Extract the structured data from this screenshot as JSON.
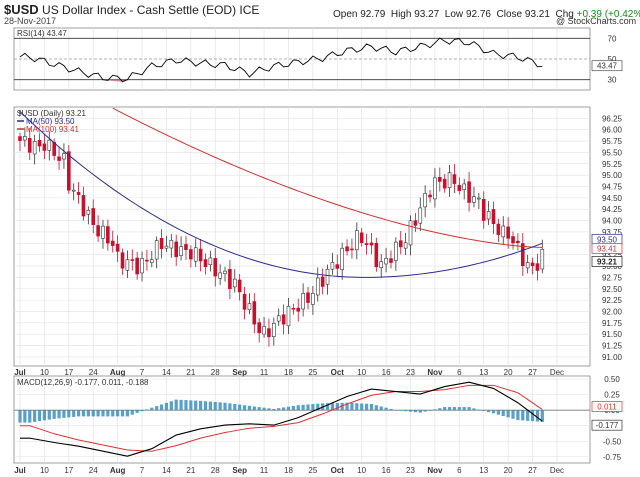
{
  "header": {
    "symbol": "$USD",
    "name": "US Dollar Index - Cash Settle (EOD) ICE",
    "date": "28-Nov-2017",
    "open_label": "Open",
    "open": "92.79",
    "high_label": "High",
    "high": "93.27",
    "low_label": "Low",
    "low": "92.76",
    "close_label": "Close",
    "close": "93.21",
    "chg_label": "Chg",
    "chg": "+0.39 (+0.42%)",
    "brand": "@ StockCharts.com"
  },
  "colors": {
    "up_candle": "#ffffff",
    "down_candle": "#c8102e",
    "ma50": "#2b2b8f",
    "ma100": "#d03030",
    "rsi_line": "#000000",
    "rsi_fill_low": "#b06070",
    "macd_line": "#000000",
    "signal_line": "#e03030",
    "histogram": "#3c8fc0",
    "grid": "#e2e2e2"
  },
  "chart_data": [
    {
      "type": "line",
      "title": "RSI(14) 43.47",
      "indicator": "RSI(14)",
      "last_value": 43.47,
      "ylim": [
        20,
        80
      ],
      "ref_lines": [
        30,
        50,
        70
      ],
      "y_ticks": [
        "70",
        "50",
        "30"
      ],
      "x": [
        "Jul 3",
        "Jul 10",
        "Jul 17",
        "Jul 24",
        "Jul 31",
        "Aug 7",
        "Aug 14",
        "Aug 21",
        "Aug 28",
        "Sep 4",
        "Sep 11",
        "Sep 18",
        "Sep 25",
        "Oct 2",
        "Oct 9",
        "Oct 16",
        "Oct 23",
        "Oct 30",
        "Nov 6",
        "Nov 13",
        "Nov 20",
        "Nov 27"
      ],
      "values": [
        52,
        45,
        38,
        32,
        31,
        43,
        49,
        46,
        44,
        36,
        43,
        47,
        51,
        58,
        62,
        57,
        62,
        68,
        66,
        55,
        52,
        44
      ]
    },
    {
      "type": "candlestick",
      "title": "$USD (Daily) 93.21",
      "legend": [
        {
          "name": "MA(50) 93.50",
          "color": "#2b2b8f"
        },
        {
          "name": "MA(100) 93.41",
          "color": "#d03030"
        }
      ],
      "ylim": [
        90.8,
        96.5
      ],
      "y_ticks": [
        "96.25",
        "96.00",
        "95.75",
        "95.50",
        "95.25",
        "95.00",
        "94.75",
        "94.50",
        "94.25",
        "94.00",
        "93.75",
        "93.50",
        "93.25",
        "93.00",
        "92.75",
        "92.50",
        "92.25",
        "92.00",
        "91.75",
        "91.50",
        "91.25",
        "91.00"
      ],
      "price_labels": [
        {
          "label": "93.50",
          "value": 93.5,
          "color": "#2b2b8f"
        },
        {
          "label": "93.41",
          "value": 93.41,
          "color": "#d03030"
        },
        {
          "label": "93.21",
          "value": 93.21,
          "color": "#222222"
        }
      ],
      "x_ticks": [
        "Jul",
        "10",
        "17",
        "24",
        "Aug",
        "7",
        "14",
        "21",
        "28",
        "Sep",
        "11",
        "18",
        "25",
        "Oct",
        "10",
        "16",
        "23",
        "Nov",
        "6",
        "13",
        "20",
        "27",
        "Dec"
      ],
      "x_ticks_bold": [
        "Jul",
        "Aug",
        "Sep",
        "Oct",
        "Nov"
      ],
      "week": [
        "Jul 3",
        "Jul 10",
        "Jul 17",
        "Jul 24",
        "Jul 31",
        "Aug 7",
        "Aug 14",
        "Aug 21",
        "Aug 28",
        "Sep 4",
        "Sep 11",
        "Sep 18",
        "Sep 25",
        "Oct 2",
        "Oct 9",
        "Oct 16",
        "Oct 23",
        "Oct 30",
        "Nov 6",
        "Nov 13",
        "Nov 20",
        "Nov 27"
      ],
      "week_open": [
        95.8,
        95.8,
        95.0,
        94.0,
        93.2,
        92.9,
        93.5,
        93.4,
        93.0,
        92.6,
        91.4,
        91.9,
        92.3,
        93.0,
        93.8,
        93.0,
        93.6,
        94.8,
        94.8,
        94.3,
        93.9,
        92.8
      ],
      "week_close": [
        95.6,
        95.3,
        94.1,
        93.5,
        93.0,
        93.5,
        93.3,
        93.0,
        92.6,
        91.6,
        91.9,
        92.3,
        93.0,
        93.6,
        93.0,
        93.6,
        94.7,
        94.9,
        94.4,
        93.7,
        93.0,
        93.21
      ],
      "ma50_start": 96.4,
      "ma50_min": 92.75,
      "ma50_end": 93.5,
      "ma100_start": 97.6,
      "ma100_end": 93.41
    },
    {
      "type": "line",
      "title": "MACD(12,26,9) -0.177, 0.011, -0.188",
      "indicator": "MACD(12,26,9)",
      "macd": -0.177,
      "signal": 0.011,
      "histogram": -0.188,
      "ylim": [
        -0.85,
        0.55
      ],
      "y_ticks": [
        "0.50",
        "0.25",
        "0.00",
        "-0.25",
        "-0.50",
        "-0.75"
      ],
      "price_labels": [
        {
          "label": "0.011",
          "value": 0.011
        },
        {
          "label": "-0.177",
          "value": -0.177
        }
      ],
      "x": [
        "Jul 3",
        "Jul 10",
        "Jul 17",
        "Jul 24",
        "Jul 31",
        "Aug 7",
        "Aug 14",
        "Aug 21",
        "Aug 28",
        "Sep 4",
        "Sep 11",
        "Sep 18",
        "Sep 25",
        "Oct 2",
        "Oct 9",
        "Oct 16",
        "Oct 23",
        "Oct 30",
        "Nov 6",
        "Nov 13",
        "Nov 20",
        "Nov 27"
      ],
      "macd_values": [
        -0.45,
        -0.52,
        -0.58,
        -0.66,
        -0.74,
        -0.62,
        -0.4,
        -0.3,
        -0.24,
        -0.22,
        -0.24,
        -0.12,
        0.05,
        0.22,
        0.34,
        0.3,
        0.26,
        0.38,
        0.45,
        0.35,
        0.12,
        -0.177
      ],
      "signal_values": [
        -0.25,
        -0.38,
        -0.48,
        -0.56,
        -0.64,
        -0.66,
        -0.57,
        -0.45,
        -0.36,
        -0.29,
        -0.26,
        -0.2,
        -0.06,
        0.1,
        0.24,
        0.3,
        0.3,
        0.33,
        0.4,
        0.4,
        0.28,
        0.011
      ],
      "x_ticks": [
        "Jul",
        "10",
        "17",
        "24",
        "Aug",
        "7",
        "14",
        "21",
        "28",
        "Sep",
        "11",
        "18",
        "25",
        "Oct",
        "10",
        "16",
        "23",
        "Nov",
        "6",
        "13",
        "20",
        "27",
        "Dec"
      ],
      "x_ticks_bold": [
        "Jul",
        "Aug",
        "Sep",
        "Oct",
        "Nov"
      ]
    }
  ]
}
